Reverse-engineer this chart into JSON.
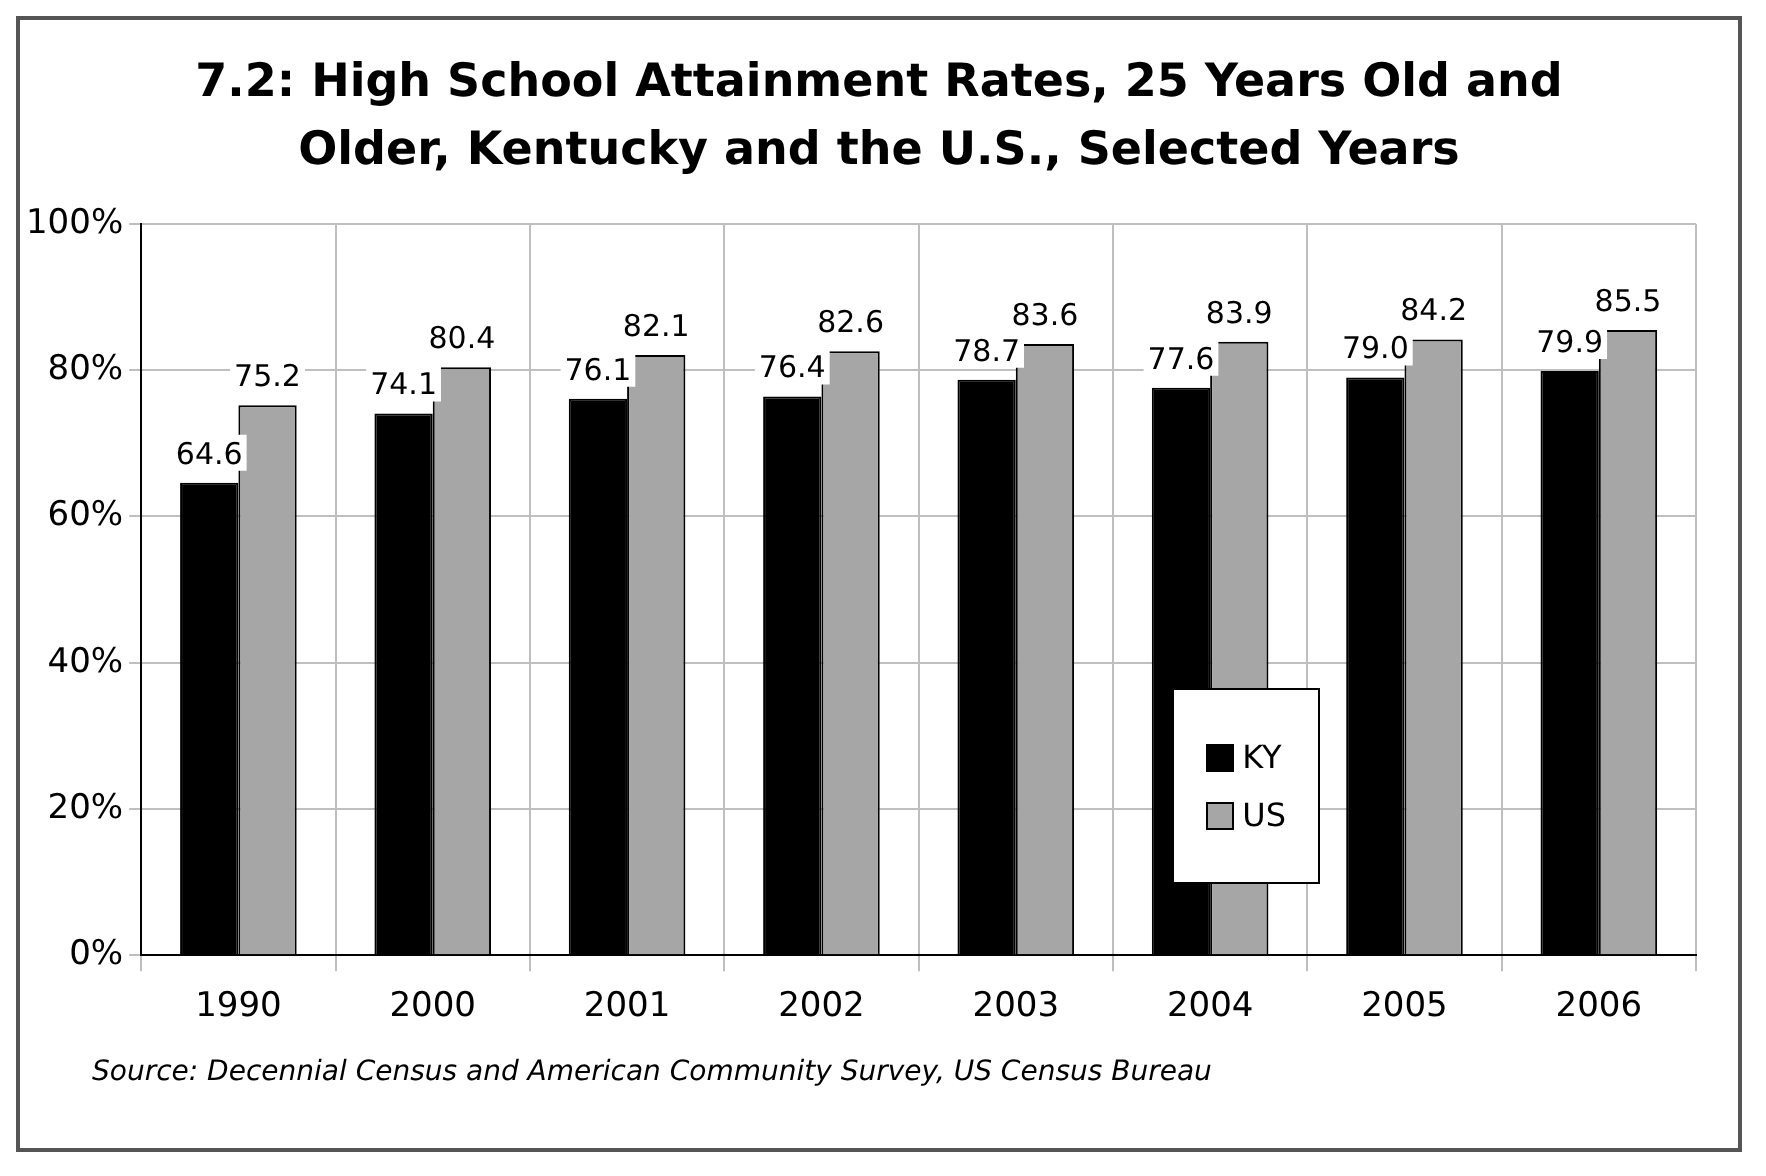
{
  "chart_data": {
    "type": "bar",
    "title": [
      "7.2:  High School Attainment Rates, 25 Years Old and",
      "Older, Kentucky and the U.S., Selected Years"
    ],
    "categories": [
      "1990",
      "2000",
      "2001",
      "2002",
      "2003",
      "2004",
      "2005",
      "2006"
    ],
    "series": [
      {
        "name": "KY",
        "color": "#000000",
        "values": [
          64.6,
          74.1,
          76.1,
          76.4,
          78.7,
          77.6,
          79.0,
          79.9
        ]
      },
      {
        "name": "US",
        "color": "#a6a6a6",
        "values": [
          75.2,
          80.4,
          82.1,
          82.6,
          83.6,
          83.9,
          84.2,
          85.5
        ]
      }
    ],
    "ylim": [
      0,
      100
    ],
    "yticks": [
      {
        "value": 0,
        "label": "0%"
      },
      {
        "value": 20,
        "label": "20%"
      },
      {
        "value": 40,
        "label": "40%"
      },
      {
        "value": 60,
        "label": "60%"
      },
      {
        "value": 80,
        "label": "80%"
      },
      {
        "value": 100,
        "label": "100%"
      }
    ],
    "grid": true,
    "legend": "bottom right",
    "value_labels": [
      [
        "64.6",
        "74.1",
        "76.1",
        "76.4",
        "78.7",
        "77.6",
        "79.0",
        "79.9"
      ],
      [
        "75.2",
        "80.4",
        "82.1",
        "82.6",
        "83.6",
        "83.9",
        "84.2",
        "85.5"
      ]
    ],
    "annotations": [
      "Source:  Decennial Census and American Community Survey, US Census Bureau"
    ]
  }
}
